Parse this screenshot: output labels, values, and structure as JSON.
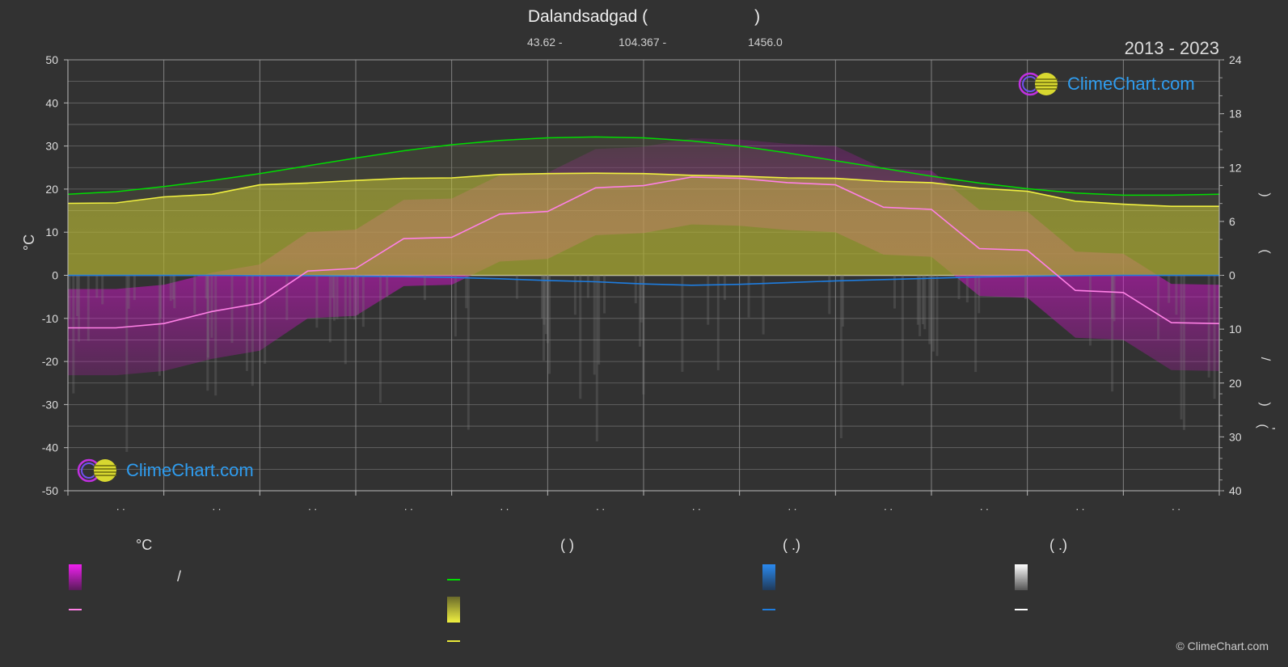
{
  "header": {
    "title_left": "Dalandsadgad (",
    "title_right": ")",
    "lat": "43.62 -",
    "lon": "104.367 -",
    "elev": "1456.0",
    "years": "2013 - 2023"
  },
  "logo": {
    "text": "ClimeChart.com"
  },
  "copyright": "© ClimeChart.com",
  "legend": {
    "temp_header": "°C",
    "temp_slash": "/",
    "sun_header": "(          )",
    "rain_header": "(   .)",
    "snow_header": "(   .)"
  },
  "colors": {
    "background": "#323232",
    "daylight": "#00dd00",
    "sunshine": "#e8e83a",
    "temperature_mean": "#ff80e6",
    "temperature_band": "#e010d8",
    "rain": "#1e7de0",
    "snow": "#ffffff"
  },
  "chart_data": {
    "type": "line",
    "month_tick_labels": [
      ". .",
      ". .",
      ". .",
      ". .",
      ". .",
      ". .",
      ". .",
      ". .",
      ". .",
      ". .",
      ". .",
      ". ."
    ],
    "y_left": {
      "label": "°C",
      "ticks": [
        "50",
        "40",
        "30",
        "20",
        "10",
        "0",
        "-10",
        "-20",
        "-30",
        "-40",
        "-50"
      ],
      "range": [
        -50,
        50
      ]
    },
    "y_right_top": {
      "ticks": [
        "24",
        "18",
        "12",
        "6",
        "0"
      ],
      "range": [
        0,
        24
      ]
    },
    "y_right_bottom": {
      "ticks": [
        "10",
        "20",
        "30",
        "40"
      ],
      "range": [
        0,
        40
      ]
    },
    "right_axis_glyphs": [
      ")",
      "(",
      "/",
      ")",
      "(",
      "'"
    ],
    "x": [
      0,
      0.5,
      1,
      1.5,
      2,
      2.5,
      3,
      3.5,
      4,
      4.5,
      5,
      5.5,
      6,
      6.5,
      7,
      7.5,
      8,
      8.5,
      9,
      9.5,
      10,
      10.5,
      11,
      11.5,
      12
    ],
    "series": [
      {
        "values": [
          -12.2,
          -12.2,
          -11.2,
          -8.4,
          -6.5,
          1,
          1.6,
          8.5,
          8.8,
          14.2,
          14.8,
          20.3,
          20.8,
          22.8,
          22.5,
          21.5,
          21,
          15.8,
          15.3,
          6.2,
          5.8,
          -3.5,
          -4,
          -11,
          -11.2
        ]
      },
      {
        "values": [
          18.8,
          19.4,
          20.6,
          22,
          23.6,
          25.4,
          27.2,
          28.9,
          30.3,
          31.3,
          31.9,
          32.1,
          31.9,
          31.2,
          30,
          28.4,
          26.6,
          24.8,
          23,
          21.4,
          20.1,
          19.1,
          18.6,
          18.6,
          18.8
        ]
      },
      {
        "values": [
          16.7,
          16.8,
          18.2,
          18.8,
          21,
          21.4,
          22,
          22.5,
          22.6,
          23.4,
          23.6,
          23.7,
          23.6,
          23.2,
          23,
          22.6,
          22.5,
          21.8,
          21.5,
          20.2,
          19.5,
          17.2,
          16.5,
          16,
          16
        ]
      },
      {
        "values": [
          0,
          0,
          0,
          0,
          0.1,
          0.1,
          0.2,
          0.3,
          0.5,
          0.8,
          1.2,
          1.5,
          2,
          2.3,
          2.1,
          1.7,
          1.3,
          1,
          0.7,
          0.4,
          0.2,
          0.1,
          0,
          0,
          0
        ]
      }
    ]
  }
}
